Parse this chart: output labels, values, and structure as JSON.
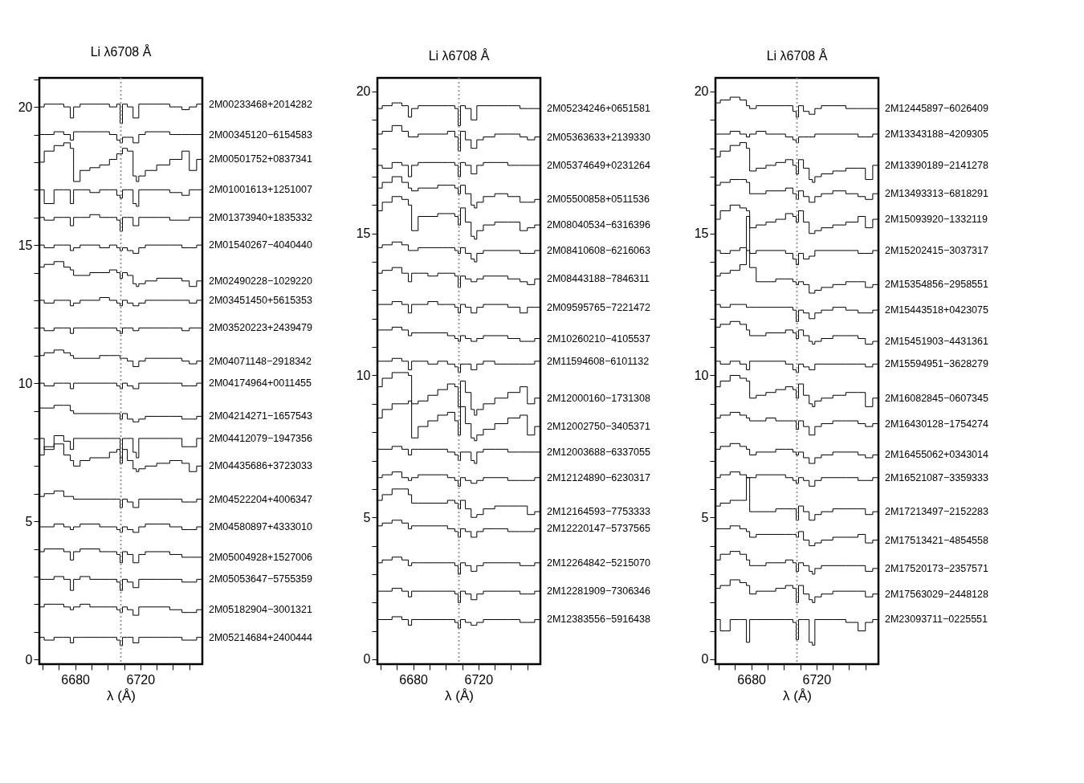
{
  "chart_data": [
    {
      "type": "step",
      "title": "Li λ6708 Å",
      "xlabel": "λ (Å)",
      "grid": false,
      "legend": false,
      "marker": "none",
      "x": [
        6658,
        6664,
        6670,
        6676,
        6678,
        6680,
        6686,
        6692,
        6698,
        6704,
        6707,
        6708,
        6710,
        6714,
        6717,
        6718,
        6720,
        6726,
        6734,
        6742,
        6749,
        6751,
        6758
      ],
      "xlim": [
        6658,
        6758
      ],
      "ylim": [
        -0.17,
        21.05
      ],
      "xticks": [
        {
          "value": 6660,
          "label": null
        },
        {
          "value": 6670,
          "label": null
        },
        6680,
        {
          "value": 6690,
          "label": null
        },
        {
          "value": 6700,
          "label": null
        },
        {
          "value": 6710,
          "label": null
        },
        6720,
        {
          "value": 6730,
          "label": null
        },
        {
          "value": 6740,
          "label": null
        },
        {
          "value": 6750,
          "label": null
        }
      ],
      "yticks": [
        0,
        {
          "value": 1,
          "label": null
        },
        {
          "value": 2,
          "label": null
        },
        {
          "value": 3,
          "label": null
        },
        {
          "value": 4,
          "label": null
        },
        5,
        {
          "value": 6,
          "label": null
        },
        {
          "value": 7,
          "label": null
        },
        {
          "value": 8,
          "label": null
        },
        {
          "value": 9,
          "label": null
        },
        10,
        {
          "value": 11,
          "label": null
        },
        {
          "value": 12,
          "label": null
        },
        {
          "value": 13,
          "label": null
        },
        {
          "value": 14,
          "label": null
        },
        15,
        {
          "value": 16,
          "label": null
        },
        {
          "value": 17,
          "label": null
        },
        {
          "value": 18,
          "label": null
        },
        {
          "value": 19,
          "label": null
        },
        20,
        {
          "value": 21,
          "label": null
        }
      ],
      "ref_lines": [
        {
          "axis": "x",
          "value": 6708,
          "color": "#999999",
          "line_style": "dotted"
        }
      ],
      "series": [
        {
          "name": "2M00233468+2014282",
          "color": "#000000",
          "values": [
            20.0,
            20.1,
            20.1,
            20.0,
            19.6,
            20.0,
            20.1,
            20.1,
            20.1,
            20.0,
            20.1,
            19.4,
            20.1,
            20.0,
            19.6,
            19.6,
            20.1,
            20.1,
            20.1,
            20.0,
            19.9,
            20.0,
            20.1
          ]
        },
        {
          "name": "2M00345120−6154583",
          "color": "#000000",
          "values": [
            19.0,
            19.0,
            19.1,
            19.0,
            18.8,
            19.1,
            19.1,
            19.1,
            19.1,
            19.0,
            18.8,
            18.7,
            18.9,
            18.9,
            18.7,
            18.7,
            19.0,
            19.1,
            19.1,
            19.0,
            19.0,
            19.0,
            19.0
          ]
        },
        {
          "name": "2M00501752+0837341",
          "color": "#000000",
          "values": [
            18.0,
            18.4,
            18.6,
            18.7,
            18.5,
            17.3,
            17.7,
            17.8,
            17.9,
            18.1,
            18.3,
            18.3,
            18.5,
            18.4,
            17.5,
            17.3,
            17.5,
            17.7,
            17.9,
            18.1,
            18.4,
            17.7,
            18.1
          ]
        },
        {
          "name": "2M01001613+1251007",
          "color": "#000000",
          "values": [
            17.0,
            16.5,
            17.0,
            17.0,
            16.5,
            17.0,
            17.0,
            16.9,
            17.0,
            17.0,
            16.8,
            16.7,
            17.0,
            17.0,
            16.5,
            16.4,
            17.0,
            17.0,
            17.0,
            16.9,
            16.8,
            17.0,
            17.0
          ]
        },
        {
          "name": "2M01373940+1835332",
          "color": "#000000",
          "values": [
            16.0,
            15.9,
            16.0,
            16.0,
            15.7,
            16.0,
            16.0,
            16.1,
            16.0,
            16.0,
            15.9,
            15.5,
            16.0,
            16.0,
            15.7,
            15.7,
            16.0,
            16.0,
            16.0,
            15.9,
            15.9,
            16.0,
            16.0
          ]
        },
        {
          "name": "2M01540267−4040440",
          "color": "#000000",
          "values": [
            15.0,
            14.9,
            15.0,
            15.0,
            14.8,
            14.9,
            15.0,
            15.0,
            14.9,
            15.0,
            14.9,
            14.8,
            14.9,
            14.8,
            14.7,
            14.7,
            14.9,
            15.0,
            15.0,
            15.0,
            14.9,
            14.9,
            15.0
          ]
        },
        {
          "name": "2M02490228−1029220",
          "color": "#000000",
          "values": [
            14.2,
            14.3,
            14.4,
            14.2,
            14.1,
            13.9,
            13.9,
            14.0,
            14.0,
            14.1,
            14.0,
            13.8,
            14.0,
            13.9,
            13.6,
            13.5,
            13.6,
            13.7,
            13.8,
            13.8,
            13.7,
            13.5,
            13.7
          ]
        },
        {
          "name": "2M03451450+5615353",
          "color": "#000000",
          "values": [
            13.0,
            12.9,
            13.0,
            13.0,
            12.8,
            12.9,
            13.0,
            13.0,
            13.1,
            13.0,
            12.9,
            12.8,
            13.0,
            12.9,
            12.8,
            12.8,
            12.9,
            13.0,
            13.0,
            13.0,
            13.0,
            12.9,
            13.0
          ]
        },
        {
          "name": "2M03520223+2439479",
          "color": "#000000",
          "values": [
            12.0,
            11.9,
            12.0,
            12.0,
            11.8,
            12.0,
            12.0,
            12.0,
            12.0,
            12.0,
            11.9,
            11.8,
            12.0,
            12.0,
            11.9,
            11.9,
            12.0,
            12.0,
            12.0,
            12.0,
            11.9,
            12.0,
            12.0
          ]
        },
        {
          "name": "2M04071148−2918342",
          "color": "#000000",
          "values": [
            11.0,
            11.1,
            11.2,
            11.1,
            11.0,
            10.9,
            10.9,
            10.9,
            11.0,
            11.0,
            11.0,
            10.9,
            10.9,
            10.8,
            10.6,
            10.6,
            10.8,
            10.9,
            10.9,
            10.9,
            10.8,
            10.7,
            10.8
          ]
        },
        {
          "name": "2M04174964+0011455",
          "color": "#000000",
          "values": [
            10.0,
            9.9,
            10.0,
            10.0,
            9.8,
            10.0,
            10.0,
            10.0,
            10.0,
            10.0,
            9.9,
            9.8,
            10.0,
            9.9,
            9.8,
            9.8,
            10.0,
            10.0,
            10.0,
            10.0,
            9.9,
            9.9,
            10.0
          ]
        },
        {
          "name": "2M04214271−1657543",
          "color": "#000000",
          "values": [
            9.1,
            9.1,
            9.2,
            9.2,
            9.0,
            8.9,
            8.9,
            8.9,
            8.9,
            8.9,
            8.9,
            8.7,
            8.9,
            8.7,
            8.6,
            8.6,
            8.7,
            8.8,
            8.8,
            8.8,
            8.7,
            8.7,
            8.8
          ]
        },
        {
          "name": "2M04412079−1947356",
          "color": "#000000",
          "values": [
            8.0,
            7.6,
            8.1,
            7.9,
            7.6,
            8.0,
            8.0,
            8.0,
            8.0,
            8.0,
            8.0,
            7.3,
            8.0,
            8.0,
            7.5,
            7.3,
            8.0,
            8.0,
            8.0,
            8.0,
            7.7,
            7.7,
            8.0
          ]
        },
        {
          "name": "2M04435686+3723033",
          "color": "#000000",
          "values": [
            7.4,
            7.7,
            7.8,
            7.4,
            7.2,
            7.0,
            7.2,
            7.3,
            7.3,
            7.5,
            7.6,
            7.1,
            7.6,
            7.2,
            6.9,
            6.8,
            6.9,
            7.0,
            7.1,
            7.2,
            7.1,
            6.8,
            7.0
          ]
        },
        {
          "name": "2M04522204+4006347",
          "color": "#000000",
          "values": [
            5.9,
            6.0,
            6.1,
            5.9,
            5.9,
            5.8,
            5.8,
            5.8,
            5.8,
            5.8,
            5.8,
            5.5,
            5.8,
            5.7,
            5.5,
            5.5,
            5.8,
            5.8,
            5.8,
            5.8,
            5.7,
            5.7,
            5.8
          ]
        },
        {
          "name": "2M04580897+4333010",
          "color": "#000000",
          "values": [
            4.8,
            4.8,
            4.9,
            4.8,
            4.7,
            4.8,
            4.9,
            4.9,
            4.8,
            4.8,
            4.7,
            4.6,
            4.8,
            4.7,
            4.6,
            4.6,
            4.8,
            4.9,
            4.9,
            4.8,
            4.7,
            4.7,
            4.8
          ]
        },
        {
          "name": "2M05004928+1527006",
          "color": "#000000",
          "values": [
            3.9,
            4.0,
            4.0,
            3.9,
            3.6,
            3.9,
            4.0,
            4.0,
            3.9,
            3.9,
            3.8,
            3.5,
            3.9,
            3.8,
            3.5,
            3.5,
            3.8,
            3.9,
            3.9,
            3.8,
            3.7,
            3.7,
            3.7
          ]
        },
        {
          "name": "2M05053647−5755359",
          "color": "#000000",
          "values": [
            2.9,
            2.9,
            3.0,
            2.9,
            2.5,
            2.9,
            3.0,
            2.9,
            2.9,
            2.9,
            2.8,
            2.5,
            2.9,
            2.8,
            2.6,
            2.6,
            2.9,
            2.9,
            2.9,
            2.9,
            2.8,
            2.8,
            2.9
          ]
        },
        {
          "name": "2M05182904−3001321",
          "color": "#000000",
          "values": [
            1.9,
            2.0,
            2.0,
            1.9,
            1.8,
            1.9,
            2.0,
            1.9,
            1.9,
            1.9,
            1.8,
            1.7,
            1.9,
            1.8,
            1.6,
            1.6,
            1.9,
            1.9,
            1.9,
            1.8,
            1.7,
            1.7,
            1.8
          ]
        },
        {
          "name": "2M05214684+2400444",
          "color": "#000000",
          "values": [
            0.8,
            0.7,
            0.8,
            0.8,
            0.6,
            0.8,
            0.8,
            0.8,
            0.8,
            0.8,
            0.7,
            0.5,
            0.8,
            0.8,
            0.6,
            0.6,
            0.8,
            0.8,
            0.8,
            0.8,
            0.7,
            0.7,
            0.8
          ]
        }
      ]
    },
    {
      "type": "step",
      "title": "Li λ6708 Å",
      "xlabel": "λ (Å)",
      "grid": false,
      "legend": false,
      "marker": "none",
      "x": [
        6658,
        6664,
        6670,
        6676,
        6678,
        6680,
        6686,
        6692,
        6698,
        6704,
        6707,
        6708,
        6710,
        6714,
        6717,
        6718,
        6720,
        6726,
        6734,
        6742,
        6749,
        6751,
        6758
      ],
      "xlim": [
        6658,
        6758
      ],
      "ylim": [
        -0.17,
        20.48
      ],
      "xticks": [
        {
          "value": 6660,
          "label": null
        },
        {
          "value": 6670,
          "label": null
        },
        6680,
        {
          "value": 6690,
          "label": null
        },
        {
          "value": 6700,
          "label": null
        },
        {
          "value": 6710,
          "label": null
        },
        6720,
        {
          "value": 6730,
          "label": null
        },
        {
          "value": 6740,
          "label": null
        },
        {
          "value": 6750,
          "label": null
        }
      ],
      "yticks": [
        0,
        {
          "value": 1,
          "label": null
        },
        {
          "value": 2,
          "label": null
        },
        {
          "value": 3,
          "label": null
        },
        {
          "value": 4,
          "label": null
        },
        5,
        {
          "value": 6,
          "label": null
        },
        {
          "value": 7,
          "label": null
        },
        {
          "value": 8,
          "label": null
        },
        {
          "value": 9,
          "label": null
        },
        10,
        {
          "value": 11,
          "label": null
        },
        {
          "value": 12,
          "label": null
        },
        {
          "value": 13,
          "label": null
        },
        {
          "value": 14,
          "label": null
        },
        15,
        {
          "value": 16,
          "label": null
        },
        {
          "value": 17,
          "label": null
        },
        {
          "value": 18,
          "label": null
        },
        {
          "value": 19,
          "label": null
        },
        20
      ],
      "ref_lines": [
        {
          "axis": "x",
          "value": 6708,
          "color": "#999999",
          "line_style": "dotted"
        }
      ],
      "series": [
        {
          "name": "2M05234246+0651581",
          "color": "#000000",
          "values": [
            19.4,
            19.5,
            19.6,
            19.5,
            19.1,
            19.4,
            19.5,
            19.5,
            19.5,
            19.5,
            19.4,
            18.8,
            19.5,
            19.4,
            19.0,
            19.0,
            19.5,
            19.5,
            19.5,
            19.5,
            19.4,
            19.4,
            19.4
          ]
        },
        {
          "name": "2M05363633+2139330",
          "color": "#000000",
          "values": [
            18.5,
            18.6,
            18.8,
            18.6,
            18.4,
            18.4,
            18.5,
            18.5,
            18.5,
            18.6,
            18.4,
            17.9,
            18.6,
            18.3,
            18.0,
            18.0,
            18.3,
            18.4,
            18.5,
            18.5,
            18.4,
            18.3,
            18.4
          ]
        },
        {
          "name": "2M05374649+0231264",
          "color": "#000000",
          "values": [
            17.4,
            17.3,
            17.5,
            17.4,
            17.0,
            17.4,
            17.5,
            17.5,
            17.5,
            17.5,
            17.4,
            17.0,
            17.5,
            17.4,
            17.1,
            17.1,
            17.4,
            17.5,
            17.5,
            17.4,
            17.4,
            17.4,
            17.4
          ]
        },
        {
          "name": "2M05500858+0511536",
          "color": "#000000",
          "values": [
            16.6,
            16.8,
            17.0,
            16.8,
            16.6,
            16.5,
            16.6,
            16.6,
            16.7,
            16.7,
            16.6,
            16.4,
            16.7,
            16.4,
            16.0,
            15.9,
            16.1,
            16.3,
            16.4,
            16.3,
            16.1,
            16.1,
            16.2
          ]
        },
        {
          "name": "2M08040534−6316396",
          "color": "#000000",
          "values": [
            15.8,
            16.1,
            16.3,
            16.2,
            16.0,
            15.1,
            15.6,
            15.6,
            15.7,
            15.7,
            15.6,
            15.3,
            15.9,
            15.4,
            14.9,
            14.8,
            15.1,
            15.3,
            15.4,
            15.4,
            15.1,
            15.2,
            15.3
          ]
        },
        {
          "name": "2M08410608−6216063",
          "color": "#000000",
          "values": [
            14.5,
            14.6,
            14.7,
            14.6,
            14.4,
            14.4,
            14.5,
            14.5,
            14.5,
            14.5,
            14.4,
            14.3,
            14.5,
            14.3,
            14.1,
            14.0,
            14.3,
            14.4,
            14.4,
            14.4,
            14.3,
            14.3,
            14.4
          ]
        },
        {
          "name": "2M08443188−7846311",
          "color": "#000000",
          "values": [
            13.6,
            13.7,
            13.8,
            13.6,
            13.3,
            13.6,
            13.6,
            13.5,
            13.6,
            13.6,
            13.5,
            13.1,
            13.5,
            13.4,
            13.3,
            13.3,
            13.4,
            13.5,
            13.5,
            13.4,
            13.3,
            13.2,
            13.4
          ]
        },
        {
          "name": "2M09595765−7221472",
          "color": "#000000",
          "values": [
            12.5,
            12.5,
            12.6,
            12.5,
            12.2,
            12.5,
            12.5,
            12.6,
            12.5,
            12.5,
            12.4,
            12.2,
            12.5,
            12.4,
            12.2,
            12.2,
            12.4,
            12.5,
            12.5,
            12.4,
            12.2,
            12.4,
            12.4
          ]
        },
        {
          "name": "2M10260210−4105537",
          "color": "#000000",
          "values": [
            11.6,
            11.6,
            11.7,
            11.6,
            11.4,
            11.5,
            11.5,
            11.5,
            11.5,
            11.4,
            11.3,
            11.2,
            11.4,
            11.3,
            11.2,
            11.2,
            11.3,
            11.4,
            11.4,
            11.3,
            11.2,
            11.2,
            11.3
          ]
        },
        {
          "name": "2M11594608−6101132",
          "color": "#000000",
          "values": [
            10.5,
            10.5,
            10.6,
            10.5,
            10.2,
            10.5,
            10.5,
            10.4,
            10.5,
            10.4,
            10.3,
            10.1,
            10.4,
            10.4,
            10.2,
            10.2,
            10.4,
            10.5,
            10.4,
            10.4,
            10.4,
            10.4,
            10.5
          ]
        },
        {
          "name": "2M12000160−1731308",
          "color": "#000000",
          "values": [
            9.6,
            9.9,
            10.1,
            10.1,
            10.0,
            9.0,
            9.1,
            9.3,
            9.5,
            9.7,
            9.6,
            8.9,
            9.8,
            9.4,
            8.8,
            8.6,
            8.8,
            9.0,
            9.2,
            9.4,
            9.6,
            9.0,
            9.2
          ]
        },
        {
          "name": "2M12002750−3405371",
          "color": "#000000",
          "values": [
            8.5,
            8.8,
            9.0,
            9.0,
            9.1,
            7.8,
            8.2,
            8.4,
            8.6,
            8.7,
            8.4,
            7.9,
            8.9,
            8.3,
            7.8,
            7.7,
            7.9,
            8.1,
            8.3,
            8.5,
            8.6,
            7.9,
            8.2
          ]
        },
        {
          "name": "2M12003688−6337055",
          "color": "#000000",
          "values": [
            7.4,
            7.4,
            7.5,
            7.4,
            7.2,
            7.4,
            7.4,
            7.4,
            7.4,
            7.3,
            7.2,
            7.0,
            7.3,
            7.3,
            7.0,
            6.9,
            7.3,
            7.4,
            7.4,
            7.3,
            7.3,
            7.3,
            7.3
          ]
        },
        {
          "name": "2M12124890−6230317",
          "color": "#000000",
          "values": [
            6.4,
            6.5,
            6.6,
            6.4,
            6.3,
            6.4,
            6.5,
            6.5,
            6.5,
            6.4,
            6.3,
            6.1,
            6.4,
            6.3,
            6.2,
            6.2,
            6.3,
            6.4,
            6.4,
            6.3,
            6.3,
            6.3,
            6.4
          ]
        },
        {
          "name": "2M12164593−7753333",
          "color": "#000000",
          "values": [
            5.6,
            5.8,
            6.0,
            6.0,
            5.8,
            5.5,
            5.5,
            5.5,
            5.5,
            5.6,
            5.5,
            5.3,
            5.6,
            5.3,
            5.0,
            5.0,
            5.1,
            5.3,
            5.4,
            5.4,
            5.4,
            5.1,
            5.2
          ]
        },
        {
          "name": "2M12220147−5737565",
          "color": "#000000",
          "values": [
            4.7,
            4.8,
            4.9,
            4.8,
            4.6,
            4.7,
            4.7,
            4.7,
            4.7,
            4.6,
            4.5,
            4.3,
            4.6,
            4.5,
            4.3,
            4.3,
            4.5,
            4.6,
            4.6,
            4.5,
            4.5,
            4.5,
            4.6
          ]
        },
        {
          "name": "2M12264842−5215070",
          "color": "#000000",
          "values": [
            3.4,
            3.5,
            3.6,
            3.5,
            3.3,
            3.4,
            3.4,
            3.4,
            3.4,
            3.4,
            3.3,
            3.0,
            3.4,
            3.3,
            3.1,
            3.1,
            3.3,
            3.4,
            3.4,
            3.4,
            3.3,
            3.3,
            3.4
          ]
        },
        {
          "name": "2M12281909−7306346",
          "color": "#000000",
          "values": [
            2.4,
            2.4,
            2.5,
            2.4,
            2.2,
            2.4,
            2.4,
            2.4,
            2.4,
            2.4,
            2.3,
            2.0,
            2.4,
            2.3,
            2.1,
            2.1,
            2.3,
            2.4,
            2.4,
            2.4,
            2.3,
            2.3,
            2.4
          ]
        },
        {
          "name": "2M12383556−5916438",
          "color": "#000000",
          "values": [
            1.4,
            1.4,
            1.5,
            1.4,
            1.2,
            1.4,
            1.4,
            1.4,
            1.4,
            1.4,
            1.3,
            1.1,
            1.4,
            1.3,
            1.2,
            1.2,
            1.3,
            1.4,
            1.4,
            1.4,
            1.3,
            1.3,
            1.4
          ]
        }
      ]
    },
    {
      "type": "step",
      "title": "Li λ6708 Å",
      "xlabel": "λ (Å)",
      "grid": false,
      "legend": false,
      "marker": "none",
      "x": [
        6658,
        6664,
        6670,
        6676,
        6678,
        6680,
        6686,
        6692,
        6698,
        6704,
        6707,
        6708,
        6710,
        6714,
        6717,
        6718,
        6720,
        6726,
        6734,
        6742,
        6749,
        6751,
        6758
      ],
      "xlim": [
        6658,
        6758
      ],
      "ylim": [
        -0.17,
        20.48
      ],
      "xticks": [
        {
          "value": 6660,
          "label": null
        },
        {
          "value": 6670,
          "label": null
        },
        6680,
        {
          "value": 6690,
          "label": null
        },
        {
          "value": 6700,
          "label": null
        },
        {
          "value": 6710,
          "label": null
        },
        6720,
        {
          "value": 6730,
          "label": null
        },
        {
          "value": 6740,
          "label": null
        },
        {
          "value": 6750,
          "label": null
        }
      ],
      "yticks": [
        0,
        {
          "value": 1,
          "label": null
        },
        {
          "value": 2,
          "label": null
        },
        {
          "value": 3,
          "label": null
        },
        {
          "value": 4,
          "label": null
        },
        5,
        {
          "value": 6,
          "label": null
        },
        {
          "value": 7,
          "label": null
        },
        {
          "value": 8,
          "label": null
        },
        {
          "value": 9,
          "label": null
        },
        10,
        {
          "value": 11,
          "label": null
        },
        {
          "value": 12,
          "label": null
        },
        {
          "value": 13,
          "label": null
        },
        {
          "value": 14,
          "label": null
        },
        15,
        {
          "value": 16,
          "label": null
        },
        {
          "value": 17,
          "label": null
        },
        {
          "value": 18,
          "label": null
        },
        {
          "value": 19,
          "label": null
        },
        20
      ],
      "ref_lines": [
        {
          "axis": "x",
          "value": 6708,
          "color": "#999999",
          "line_style": "dotted"
        }
      ],
      "series": [
        {
          "name": "2M12445897−6026409",
          "color": "#000000",
          "values": [
            19.6,
            19.7,
            19.8,
            19.7,
            19.5,
            19.4,
            19.5,
            19.5,
            19.5,
            19.5,
            19.3,
            19.1,
            19.5,
            19.3,
            19.2,
            19.2,
            19.4,
            19.5,
            19.5,
            19.4,
            19.4,
            19.4,
            19.4
          ]
        },
        {
          "name": "2M13343188−4209305",
          "color": "#000000",
          "values": [
            18.5,
            18.5,
            18.6,
            18.5,
            18.4,
            18.5,
            18.6,
            18.5,
            18.5,
            18.4,
            18.3,
            18.2,
            18.4,
            18.4,
            18.4,
            18.4,
            18.5,
            18.5,
            18.5,
            18.5,
            18.4,
            18.4,
            18.5
          ]
        },
        {
          "name": "2M13390189−2141278",
          "color": "#000000",
          "values": [
            17.7,
            17.9,
            18.1,
            18.2,
            18.0,
            17.2,
            17.3,
            17.4,
            17.5,
            17.6,
            17.4,
            17.1,
            17.6,
            17.3,
            16.9,
            16.8,
            17.0,
            17.1,
            17.2,
            17.3,
            17.3,
            16.9,
            17.4
          ]
        },
        {
          "name": "2M13493313−6818291",
          "color": "#000000",
          "values": [
            16.7,
            16.8,
            16.9,
            16.9,
            16.8,
            16.4,
            16.4,
            16.5,
            16.5,
            16.6,
            16.4,
            16.2,
            16.5,
            16.3,
            16.1,
            16.1,
            16.3,
            16.4,
            16.5,
            16.4,
            16.3,
            16.2,
            16.4
          ]
        },
        {
          "name": "2M15093920−1332119",
          "color": "#000000",
          "values": [
            15.5,
            15.8,
            16.0,
            15.9,
            15.8,
            15.2,
            15.3,
            15.4,
            15.5,
            15.7,
            15.6,
            15.4,
            15.8,
            15.4,
            15.0,
            15.0,
            15.1,
            15.2,
            15.3,
            15.4,
            15.6,
            15.2,
            15.5
          ]
        },
        {
          "name": "2M15202415−3037317",
          "color": "#000000",
          "values": [
            14.4,
            14.3,
            14.4,
            14.5,
            14.4,
            14.3,
            14.4,
            14.4,
            14.4,
            14.3,
            14.1,
            13.9,
            14.3,
            14.1,
            14.2,
            14.2,
            14.4,
            14.4,
            14.4,
            14.4,
            14.3,
            14.3,
            14.4
          ]
        },
        {
          "name": "2M15354856−2958551",
          "color": "#000000",
          "values": [
            13.5,
            13.6,
            13.7,
            13.9,
            15.6,
            13.8,
            13.3,
            13.3,
            13.4,
            13.4,
            13.3,
            13.2,
            13.3,
            13.2,
            12.9,
            12.9,
            13.0,
            13.1,
            13.2,
            13.3,
            13.3,
            13.1,
            13.2
          ]
        },
        {
          "name": "2M15443518+0423075",
          "color": "#000000",
          "values": [
            12.5,
            12.4,
            12.5,
            12.5,
            12.4,
            12.4,
            12.4,
            12.4,
            12.4,
            12.4,
            12.3,
            11.9,
            12.3,
            12.2,
            12.0,
            12.0,
            12.2,
            12.3,
            12.4,
            12.3,
            12.2,
            12.2,
            12.3
          ]
        },
        {
          "name": "2M15451903−4431361",
          "color": "#000000",
          "values": [
            11.7,
            11.8,
            11.9,
            11.8,
            11.6,
            11.4,
            11.4,
            11.5,
            11.5,
            11.6,
            11.5,
            11.3,
            11.6,
            11.4,
            11.2,
            11.1,
            11.2,
            11.3,
            11.4,
            11.4,
            11.3,
            11.1,
            11.2
          ]
        },
        {
          "name": "2M15594951−3628279",
          "color": "#000000",
          "values": [
            10.5,
            10.4,
            10.5,
            10.4,
            10.2,
            10.5,
            10.5,
            10.5,
            10.5,
            10.4,
            10.2,
            10.1,
            10.4,
            10.3,
            10.2,
            10.2,
            10.4,
            10.4,
            10.4,
            10.4,
            10.4,
            10.3,
            10.4
          ]
        },
        {
          "name": "2M16082845−0607345",
          "color": "#000000",
          "values": [
            9.6,
            9.8,
            10.0,
            9.9,
            9.8,
            9.2,
            9.3,
            9.4,
            9.5,
            9.6,
            9.5,
            9.2,
            9.7,
            9.3,
            9.0,
            8.9,
            9.1,
            9.2,
            9.3,
            9.4,
            9.4,
            8.9,
            9.2
          ]
        },
        {
          "name": "2M16430128−1754274",
          "color": "#000000",
          "values": [
            8.5,
            8.6,
            8.7,
            8.6,
            8.5,
            8.4,
            8.4,
            8.5,
            8.4,
            8.4,
            8.4,
            8.1,
            8.4,
            8.2,
            7.9,
            7.9,
            8.2,
            8.3,
            8.4,
            8.4,
            8.3,
            8.2,
            8.3
          ]
        },
        {
          "name": "2M16455062+0343014",
          "color": "#000000",
          "values": [
            7.4,
            7.5,
            7.6,
            7.5,
            7.4,
            7.2,
            7.3,
            7.3,
            7.4,
            7.4,
            7.3,
            7.2,
            7.3,
            7.1,
            6.9,
            6.9,
            7.1,
            7.2,
            7.3,
            7.3,
            7.2,
            7.1,
            7.2
          ]
        },
        {
          "name": "2M16521087−3359333",
          "color": "#000000",
          "values": [
            6.4,
            6.5,
            6.6,
            6.5,
            6.4,
            6.4,
            6.5,
            6.5,
            6.5,
            6.4,
            6.3,
            6.2,
            6.4,
            6.3,
            6.1,
            6.1,
            6.3,
            6.4,
            6.4,
            6.4,
            6.3,
            6.3,
            6.4
          ]
        },
        {
          "name": "2M17213497−2152283",
          "color": "#000000",
          "values": [
            5.4,
            5.5,
            5.6,
            5.6,
            6.4,
            5.2,
            5.2,
            5.2,
            5.3,
            5.3,
            5.3,
            4.9,
            5.4,
            5.2,
            4.9,
            4.9,
            5.1,
            5.2,
            5.3,
            5.3,
            5.3,
            5.1,
            5.2
          ]
        },
        {
          "name": "2M17513421−4854558",
          "color": "#000000",
          "values": [
            4.6,
            4.6,
            4.7,
            4.6,
            4.5,
            4.3,
            4.4,
            4.4,
            4.4,
            4.4,
            4.4,
            4.3,
            4.5,
            4.2,
            4.0,
            4.0,
            4.1,
            4.2,
            4.3,
            4.3,
            4.4,
            4.1,
            4.2
          ]
        },
        {
          "name": "2M17520173−2357571",
          "color": "#000000",
          "values": [
            3.5,
            3.7,
            3.8,
            3.7,
            3.5,
            3.3,
            3.3,
            3.4,
            3.4,
            3.5,
            3.4,
            3.1,
            3.4,
            3.3,
            3.1,
            3.0,
            3.2,
            3.3,
            3.3,
            3.3,
            3.3,
            3.1,
            3.2
          ]
        },
        {
          "name": "2M17563029−2448128",
          "color": "#000000",
          "values": [
            2.5,
            2.6,
            2.8,
            2.7,
            2.6,
            2.3,
            2.4,
            2.4,
            2.5,
            2.6,
            2.5,
            2.0,
            2.6,
            2.3,
            2.1,
            2.0,
            2.2,
            2.3,
            2.4,
            2.4,
            2.4,
            2.2,
            2.3
          ]
        },
        {
          "name": "2M23093711−0225551",
          "color": "#000000",
          "values": [
            1.4,
            1.0,
            1.4,
            1.4,
            0.6,
            1.4,
            1.4,
            1.4,
            1.4,
            1.4,
            1.3,
            0.7,
            1.4,
            1.4,
            0.6,
            0.5,
            1.4,
            1.4,
            1.4,
            1.3,
            1.0,
            1.3,
            1.4
          ]
        }
      ]
    }
  ]
}
